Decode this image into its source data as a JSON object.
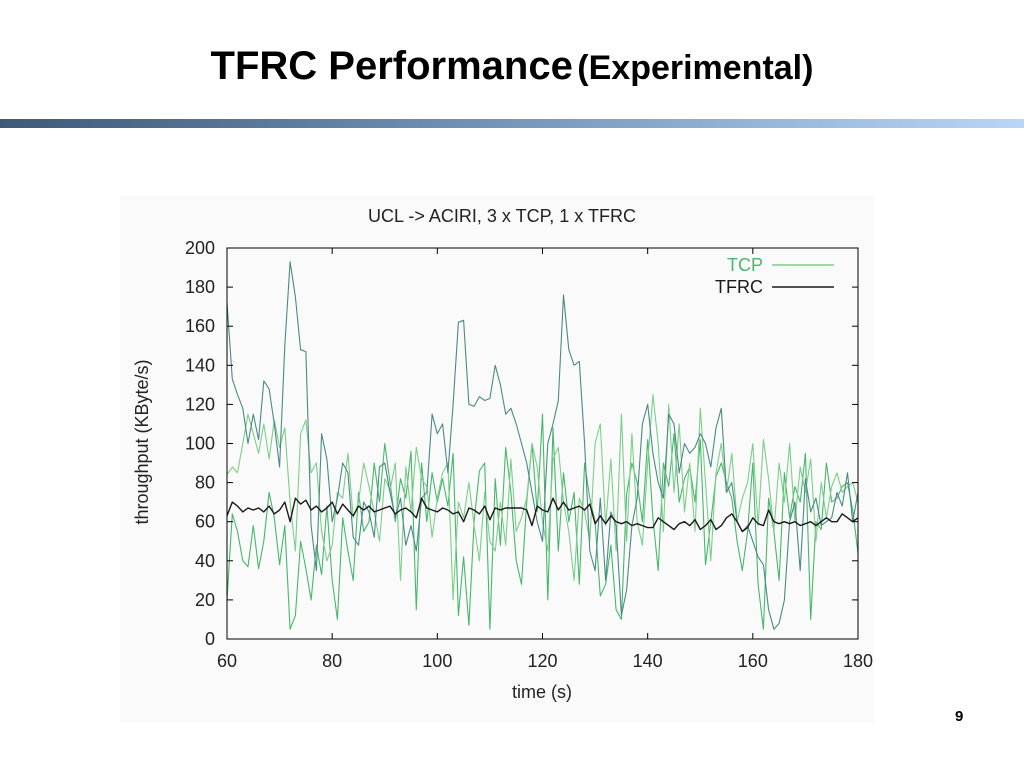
{
  "slide": {
    "title_main": "TFRC Performance",
    "title_sub": "(Experimental)",
    "page_number": "9"
  },
  "colors": {
    "tcp_a": "#47b76c",
    "tcp_b": "#7dce8b",
    "tcp_c": "#4a8a86",
    "tfrc": "#1a1a1a",
    "axis": "#000000",
    "title_bar_dark": "#3f5a78",
    "title_bar_light": "#b9d6f6"
  },
  "chart_data": {
    "type": "line",
    "title": "UCL -> ACIRI, 3 x TCP, 1 x TFRC",
    "xlabel": "time (s)",
    "ylabel": "throughput (KByte/s)",
    "xlim": [
      60,
      180
    ],
    "ylim": [
      0,
      200
    ],
    "xticks": [
      60,
      80,
      100,
      120,
      140,
      160,
      180
    ],
    "yticks": [
      0,
      20,
      40,
      60,
      80,
      100,
      120,
      140,
      160,
      180,
      200
    ],
    "xtick_labels": [
      "60",
      "80",
      "100",
      "120",
      "140",
      "160",
      "180"
    ],
    "ytick_labels": [
      "0",
      "20",
      "40",
      "60",
      "80",
      "100",
      "120",
      "140",
      "160",
      "180",
      "200"
    ],
    "grid": false,
    "legend": {
      "position": "top-right",
      "entries": [
        {
          "label": "TCP",
          "color_key": "tcp_b"
        },
        {
          "label": "TFRC",
          "color_key": "tfrc"
        }
      ]
    },
    "series": [
      {
        "name": "TCP",
        "color_key": "tcp_a",
        "x": [
          60,
          61,
          62,
          63,
          64,
          65,
          66,
          67,
          68,
          69,
          70,
          71,
          72,
          73,
          74,
          75,
          76,
          77,
          78,
          79,
          80,
          81,
          82,
          83,
          84,
          85,
          86,
          87,
          88,
          89,
          90,
          91,
          92,
          93,
          94,
          95,
          96,
          97,
          98,
          99,
          100,
          101,
          102,
          103,
          104,
          105,
          106,
          107,
          108,
          109,
          110,
          111,
          112,
          113,
          114,
          115,
          116,
          117,
          118,
          119,
          120,
          121,
          122,
          123,
          124,
          125,
          126,
          127,
          128,
          129,
          130,
          131,
          132,
          133,
          134,
          135,
          136,
          137,
          138,
          139,
          140,
          141,
          142,
          143,
          144,
          145,
          146,
          147,
          148,
          149,
          150,
          151,
          152,
          153,
          154,
          155,
          156,
          157,
          158,
          159,
          160,
          161,
          162,
          163,
          164,
          165,
          166,
          167,
          168,
          169,
          170,
          171,
          172,
          173,
          174,
          175,
          176,
          177,
          178,
          179,
          180
        ],
        "y": [
          20,
          64,
          55,
          40,
          37,
          58,
          36,
          50,
          75,
          62,
          38,
          58,
          5,
          12,
          50,
          36,
          20,
          48,
          33,
          68,
          30,
          10,
          62,
          45,
          30,
          75,
          55,
          60,
          90,
          70,
          100,
          80,
          60,
          82,
          72,
          96,
          15,
          90,
          60,
          85,
          70,
          82,
          68,
          95,
          12,
          42,
          7,
          60,
          86,
          90,
          5,
          82,
          48,
          98,
          75,
          40,
          28,
          70,
          100,
          65,
          115,
          20,
          108,
          45,
          85,
          60,
          75,
          28,
          90,
          72,
          60,
          22,
          28,
          48,
          15,
          10,
          74,
          90,
          80,
          60,
          102,
          62,
          35,
          90,
          78,
          105,
          70,
          82,
          88,
          70,
          102,
          38,
          60,
          83,
          90,
          80,
          72,
          50,
          35,
          55,
          90,
          28,
          5,
          72,
          55,
          30,
          85,
          62,
          78,
          70,
          95,
          10,
          60,
          56,
          90,
          70,
          72,
          78,
          80,
          66,
          44
        ]
      },
      {
        "name": "",
        "color_key": "tcp_b",
        "x": [
          60,
          61,
          62,
          63,
          64,
          65,
          66,
          67,
          68,
          69,
          70,
          71,
          72,
          73,
          74,
          75,
          76,
          77,
          78,
          79,
          80,
          81,
          82,
          83,
          84,
          85,
          86,
          87,
          88,
          89,
          90,
          91,
          92,
          93,
          94,
          95,
          96,
          97,
          98,
          99,
          100,
          101,
          102,
          103,
          104,
          105,
          106,
          107,
          108,
          109,
          110,
          111,
          112,
          113,
          114,
          115,
          116,
          117,
          118,
          119,
          120,
          121,
          122,
          123,
          124,
          125,
          126,
          127,
          128,
          129,
          130,
          131,
          132,
          133,
          134,
          135,
          136,
          137,
          138,
          139,
          140,
          141,
          142,
          143,
          144,
          145,
          146,
          147,
          148,
          149,
          150,
          151,
          152,
          153,
          154,
          155,
          156,
          157,
          158,
          159,
          160,
          161,
          162,
          163,
          164,
          165,
          166,
          167,
          168,
          169,
          170,
          171,
          172,
          173,
          174,
          175,
          176,
          177,
          178,
          179,
          180
        ],
        "y": [
          84,
          88,
          85,
          100,
          115,
          105,
          95,
          110,
          92,
          112,
          98,
          108,
          70,
          45,
          105,
          112,
          85,
          90,
          55,
          40,
          48,
          75,
          72,
          95,
          62,
          70,
          90,
          78,
          65,
          50,
          82,
          76,
          90,
          30,
          88,
          65,
          98,
          82,
          78,
          52,
          72,
          85,
          90,
          20,
          70,
          62,
          80,
          58,
          40,
          75,
          50,
          45,
          70,
          48,
          92,
          55,
          62,
          72,
          100,
          88,
          60,
          45,
          92,
          98,
          70,
          55,
          30,
          72,
          65,
          50,
          100,
          110,
          58,
          92,
          45,
          115,
          50,
          105,
          60,
          48,
          90,
          125,
          100,
          55,
          120,
          75,
          110,
          65,
          90,
          55,
          118,
          80,
          40,
          85,
          100,
          75,
          95,
          60,
          72,
          80,
          100,
          58,
          102,
          82,
          55,
          90,
          70,
          100,
          60,
          88,
          75,
          92,
          50,
          80,
          62,
          78,
          85,
          75,
          78,
          80,
          70
        ]
      },
      {
        "name": "",
        "color_key": "tcp_c",
        "x": [
          60,
          61,
          62,
          63,
          64,
          65,
          66,
          67,
          68,
          69,
          70,
          71,
          72,
          73,
          74,
          75,
          76,
          77,
          78,
          79,
          80,
          81,
          82,
          83,
          84,
          85,
          86,
          87,
          88,
          89,
          90,
          91,
          92,
          93,
          94,
          95,
          96,
          97,
          98,
          99,
          100,
          101,
          102,
          103,
          104,
          105,
          106,
          107,
          108,
          109,
          110,
          111,
          112,
          113,
          114,
          115,
          116,
          117,
          118,
          119,
          120,
          121,
          122,
          123,
          124,
          125,
          126,
          127,
          128,
          129,
          130,
          131,
          132,
          133,
          134,
          135,
          136,
          137,
          138,
          139,
          140,
          141,
          142,
          143,
          144,
          145,
          146,
          147,
          148,
          149,
          150,
          151,
          152,
          153,
          154,
          155,
          156,
          157,
          158,
          159,
          160,
          161,
          162,
          163,
          164,
          165,
          166,
          167,
          168,
          169,
          170,
          171,
          172,
          173,
          174,
          175,
          176,
          177,
          178,
          179,
          180
        ],
        "y": [
          172,
          133,
          125,
          118,
          100,
          115,
          102,
          132,
          128,
          110,
          88,
          150,
          193,
          175,
          148,
          147,
          58,
          35,
          105,
          92,
          60,
          72,
          90,
          85,
          52,
          48,
          70,
          65,
          52,
          88,
          90,
          75,
          62,
          72,
          48,
          58,
          45,
          72,
          75,
          115,
          105,
          110,
          85,
          120,
          162,
          163,
          120,
          119,
          124,
          122,
          123,
          140,
          130,
          115,
          118,
          110,
          100,
          90,
          75,
          60,
          50,
          100,
          110,
          122,
          176,
          148,
          140,
          142,
          100,
          45,
          35,
          72,
          30,
          65,
          58,
          12,
          25,
          58,
          72,
          110,
          120,
          95,
          80,
          72,
          115,
          110,
          85,
          100,
          95,
          98,
          105,
          100,
          88,
          108,
          118,
          75,
          80,
          60,
          55,
          58,
          50,
          42,
          38,
          15,
          5,
          8,
          20,
          60,
          70,
          35,
          82,
          65,
          72,
          58,
          60,
          62,
          75,
          68,
          85,
          60,
          75
        ]
      },
      {
        "name": "TFRC",
        "color_key": "tfrc",
        "x": [
          60,
          61,
          62,
          63,
          64,
          65,
          66,
          67,
          68,
          69,
          70,
          71,
          72,
          73,
          74,
          75,
          76,
          77,
          78,
          79,
          80,
          81,
          82,
          83,
          84,
          85,
          86,
          87,
          88,
          89,
          90,
          91,
          92,
          93,
          94,
          95,
          96,
          97,
          98,
          99,
          100,
          101,
          102,
          103,
          104,
          105,
          106,
          107,
          108,
          109,
          110,
          111,
          112,
          113,
          114,
          115,
          116,
          117,
          118,
          119,
          120,
          121,
          122,
          123,
          124,
          125,
          126,
          127,
          128,
          129,
          130,
          131,
          132,
          133,
          134,
          135,
          136,
          137,
          138,
          139,
          140,
          141,
          142,
          143,
          144,
          145,
          146,
          147,
          148,
          149,
          150,
          151,
          152,
          153,
          154,
          155,
          156,
          157,
          158,
          159,
          160,
          161,
          162,
          163,
          164,
          165,
          166,
          167,
          168,
          169,
          170,
          171,
          172,
          173,
          174,
          175,
          176,
          177,
          178,
          179,
          180
        ],
        "y": [
          63,
          70,
          68,
          65,
          67,
          66,
          67,
          65,
          68,
          64,
          66,
          70,
          60,
          72,
          69,
          71,
          66,
          68,
          65,
          67,
          70,
          64,
          69,
          66,
          63,
          68,
          66,
          68,
          65,
          66,
          67,
          68,
          64,
          66,
          67,
          65,
          62,
          72,
          67,
          66,
          65,
          67,
          66,
          64,
          65,
          60,
          67,
          66,
          64,
          68,
          61,
          67,
          66,
          67,
          67,
          67,
          67,
          66,
          58,
          68,
          66,
          65,
          72,
          66,
          70,
          66,
          67,
          68,
          66,
          69,
          59,
          63,
          59,
          63,
          60,
          59,
          60,
          58,
          59,
          58,
          57,
          57,
          62,
          60,
          58,
          56,
          59,
          60,
          58,
          61,
          56,
          58,
          61,
          56,
          58,
          62,
          64,
          60,
          55,
          57,
          62,
          59,
          58,
          66,
          60,
          59,
          60,
          59,
          60,
          58,
          59,
          60,
          58,
          60,
          62,
          60,
          60,
          64,
          62,
          60,
          62
        ]
      }
    ]
  }
}
